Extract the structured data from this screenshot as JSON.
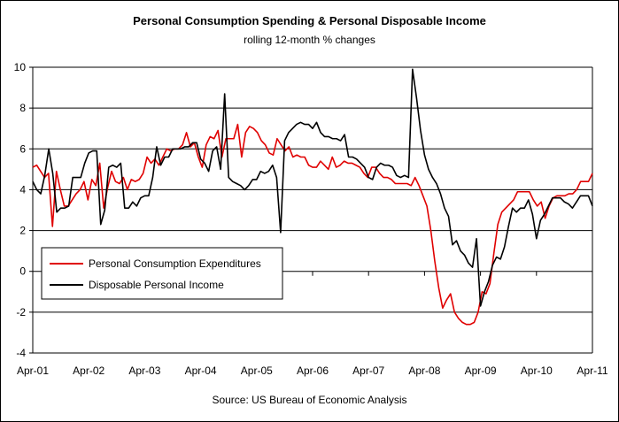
{
  "chart_data": {
    "type": "line",
    "title": "Personal Consumption Spending & Personal Disposable Income",
    "subtitle": "rolling 12-month % changes",
    "source": "Source: US Bureau of Economic Analysis",
    "ylim": [
      -4,
      10
    ],
    "yticks": [
      -4,
      -2,
      0,
      2,
      4,
      6,
      8,
      10
    ],
    "xticks": [
      "Apr-01",
      "Apr-02",
      "Apr-03",
      "Apr-04",
      "Apr-05",
      "Apr-06",
      "Apr-07",
      "Apr-08",
      "Apr-09",
      "Apr-10",
      "Apr-11"
    ],
    "x_start": "Apr-01",
    "x_end": "Apr-11",
    "grid": "horizontal",
    "legend_position": "bottom-left",
    "series": [
      {
        "name": "Personal Consumption Expenditures",
        "color": "#e00000",
        "values": [
          5.1,
          5.2,
          4.9,
          4.6,
          4.8,
          2.2,
          4.9,
          4.0,
          3.2,
          3.2,
          3.5,
          3.8,
          4.0,
          4.4,
          3.5,
          4.5,
          4.2,
          5.3,
          3.1,
          4.1,
          4.9,
          4.4,
          4.3,
          4.6,
          4.0,
          4.5,
          4.4,
          4.5,
          4.8,
          5.6,
          5.3,
          5.5,
          5.2,
          5.6,
          6.0,
          5.9,
          6.0,
          6.0,
          6.2,
          6.8,
          6.1,
          6.3,
          5.6,
          5.1,
          6.2,
          6.6,
          6.5,
          6.9,
          5.6,
          6.5,
          6.5,
          6.5,
          7.2,
          5.6,
          6.8,
          7.1,
          7.0,
          6.8,
          6.4,
          6.2,
          5.8,
          5.7,
          6.5,
          6.2,
          5.9,
          6.1,
          5.6,
          5.7,
          5.6,
          5.6,
          5.2,
          5.1,
          5.1,
          5.4,
          5.2,
          5.0,
          5.6,
          5.1,
          5.2,
          5.4,
          5.3,
          5.3,
          5.2,
          5.1,
          4.8,
          4.6,
          5.1,
          5.1,
          4.8,
          4.6,
          4.6,
          4.5,
          4.3,
          4.3,
          4.3,
          4.3,
          4.2,
          4.6,
          4.2,
          3.7,
          3.2,
          2.0,
          0.5,
          -0.8,
          -1.8,
          -1.4,
          -1.1,
          -2.0,
          -2.3,
          -2.5,
          -2.6,
          -2.6,
          -2.5,
          -2.0,
          -1.0,
          -1.1,
          -0.6,
          0.9,
          2.3,
          2.9,
          3.1,
          3.3,
          3.5,
          3.9,
          3.9,
          3.9,
          3.9,
          3.5,
          3.2,
          3.4,
          2.6,
          3.2,
          3.6,
          3.7,
          3.7,
          3.7,
          3.8,
          3.8,
          4.0,
          4.4,
          4.4,
          4.4,
          4.8
        ]
      },
      {
        "name": "Disposable Personal Income",
        "color": "#000000",
        "values": [
          4.4,
          4.0,
          3.8,
          4.7,
          6.0,
          4.8,
          2.9,
          3.1,
          3.1,
          3.2,
          4.6,
          4.6,
          4.6,
          5.3,
          5.8,
          5.9,
          5.9,
          2.3,
          3.0,
          5.1,
          5.2,
          5.1,
          5.3,
          3.1,
          3.1,
          3.4,
          3.2,
          3.6,
          3.7,
          3.7,
          4.6,
          6.1,
          5.2,
          5.6,
          5.6,
          6.0,
          6.0,
          6.0,
          6.1,
          6.1,
          6.3,
          6.3,
          5.5,
          5.3,
          4.9,
          5.9,
          6.1,
          5.0,
          8.7,
          4.6,
          4.4,
          4.3,
          4.2,
          4.0,
          4.2,
          4.5,
          4.5,
          4.9,
          4.8,
          4.9,
          5.2,
          4.6,
          1.9,
          6.4,
          6.8,
          7.0,
          7.2,
          7.3,
          7.2,
          7.2,
          7.0,
          7.3,
          6.8,
          6.6,
          6.6,
          6.5,
          6.5,
          6.4,
          6.7,
          5.6,
          5.6,
          5.5,
          5.3,
          5.1,
          4.6,
          4.5,
          5.1,
          5.3,
          5.2,
          5.2,
          5.1,
          4.7,
          4.6,
          4.7,
          4.6,
          9.9,
          8.5,
          6.9,
          5.7,
          5.0,
          4.6,
          4.3,
          3.8,
          3.1,
          2.7,
          1.3,
          1.5,
          1.0,
          0.8,
          0.4,
          0.2,
          1.6,
          -1.7,
          -1.0,
          -0.5,
          0.3,
          0.7,
          0.6,
          1.2,
          2.2,
          3.1,
          2.9,
          3.1,
          3.1,
          3.5,
          2.8,
          1.6,
          2.5,
          2.8,
          3.2,
          3.6,
          3.6,
          3.6,
          3.4,
          3.3,
          3.1,
          3.4,
          3.7,
          3.7,
          3.7,
          3.2
        ]
      }
    ]
  }
}
